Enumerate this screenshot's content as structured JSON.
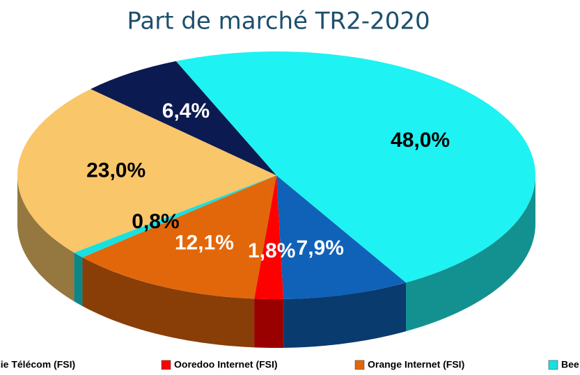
{
  "chart_data": {
    "type": "pie3d",
    "title": "Part de marché TR2-2020",
    "categories": [
      "unisie Télécom (FSI)",
      "Ooredoo Internet (FSI)",
      "Orange Internet (FSI)",
      "Bee",
      null,
      null,
      null
    ],
    "values": [
      7.9,
      1.8,
      12.1,
      0.8,
      23.0,
      6.4,
      48.0
    ],
    "value_labels": [
      "7,9%",
      "1,8%",
      "12,1%",
      "0,8%",
      "23,0%",
      "6,4%",
      "48,0%"
    ],
    "colors": [
      "#0f62b8",
      "#ff0000",
      "#e2670a",
      "#19e0e0",
      "#f9c66a",
      "#0c1a52",
      "#1ff2f2"
    ],
    "legend": "bottom"
  }
}
